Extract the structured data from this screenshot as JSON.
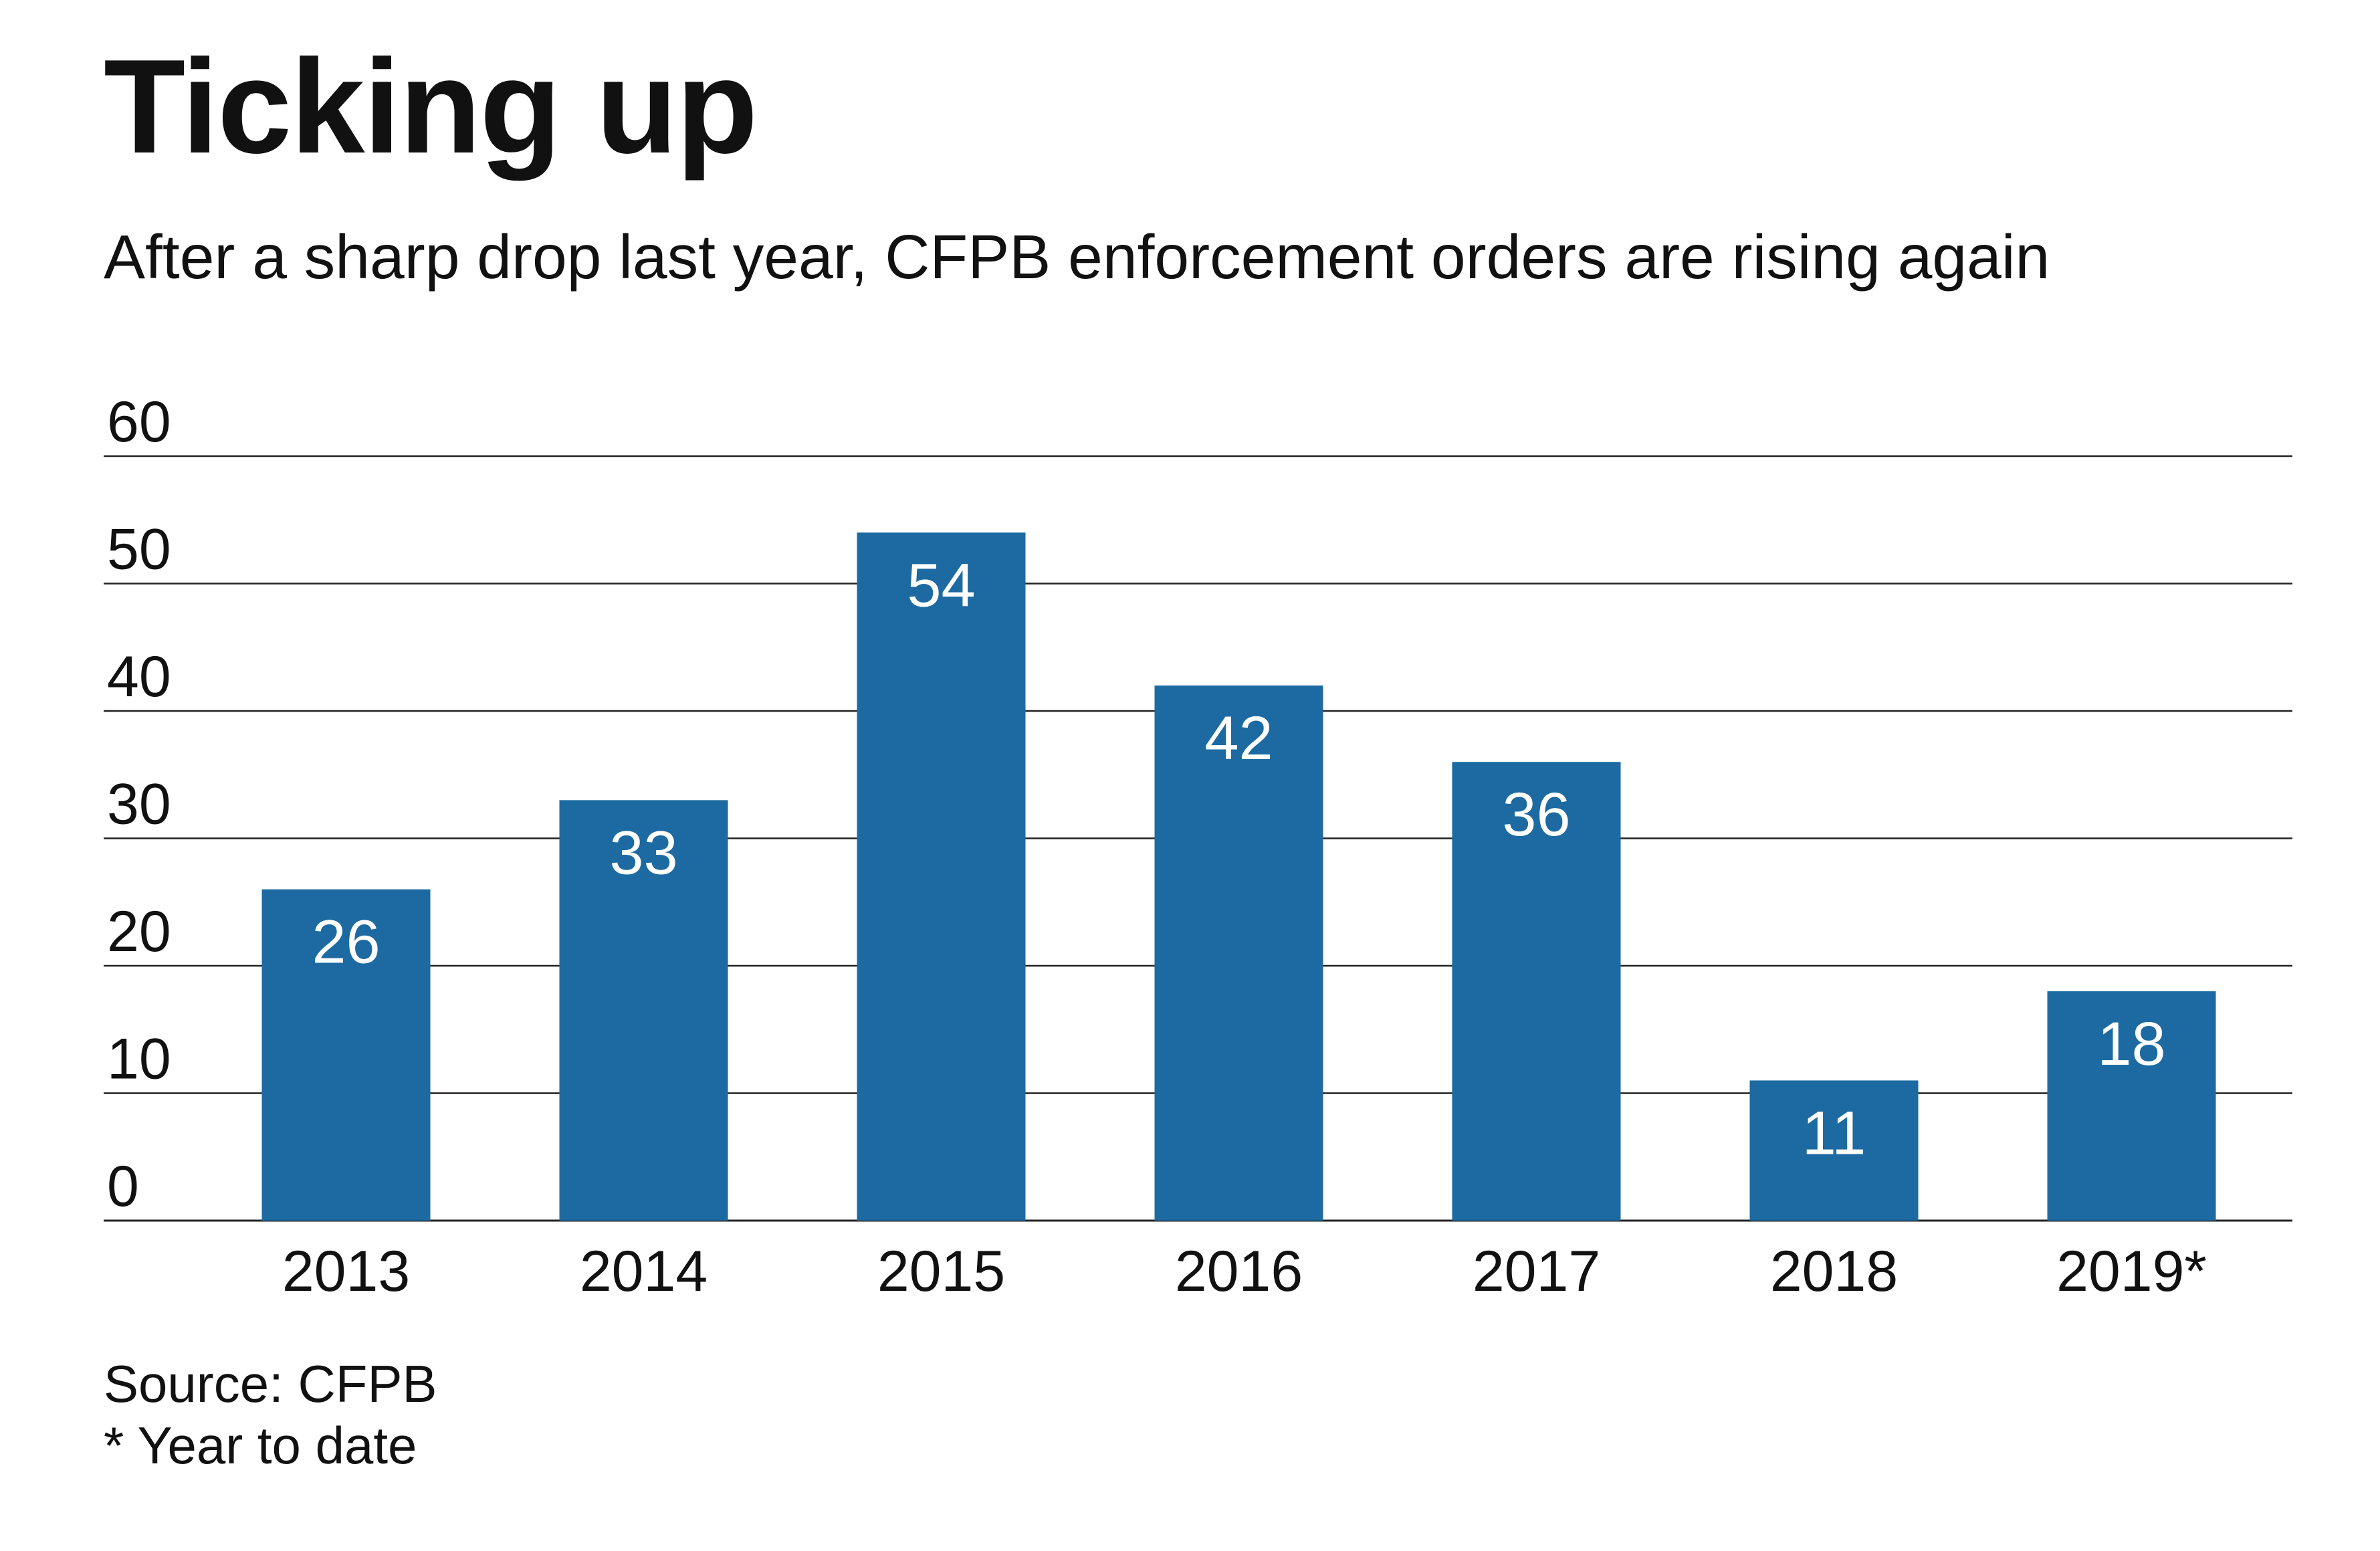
{
  "title": "Ticking up",
  "subtitle": "After a sharp drop last year, CFPB enforcement orders are rising again",
  "source": "Source: CFPB",
  "note": "* Year to date",
  "colors": {
    "bar": "#1c6aa1",
    "bar_label": "#ffffff",
    "grid": "#222222",
    "text": "#111111"
  },
  "chart_data": {
    "type": "bar",
    "categories": [
      "2013",
      "2014",
      "2015",
      "2016",
      "2017",
      "2018",
      "2019*"
    ],
    "values": [
      26,
      33,
      54,
      42,
      36,
      11,
      18
    ],
    "data_labels": [
      "26",
      "33",
      "54",
      "42",
      "36",
      "11",
      "18"
    ],
    "title": "Ticking up",
    "subtitle": "After a sharp drop last year, CFPB enforcement orders are rising again",
    "xlabel": "",
    "ylabel": "",
    "ylim": [
      0,
      60
    ],
    "yticks": [
      0,
      10,
      20,
      30,
      40,
      50,
      60
    ],
    "ytick_labels": [
      "0",
      "10",
      "20",
      "30",
      "40",
      "50",
      "60"
    ],
    "grid": true,
    "legend": "none"
  }
}
